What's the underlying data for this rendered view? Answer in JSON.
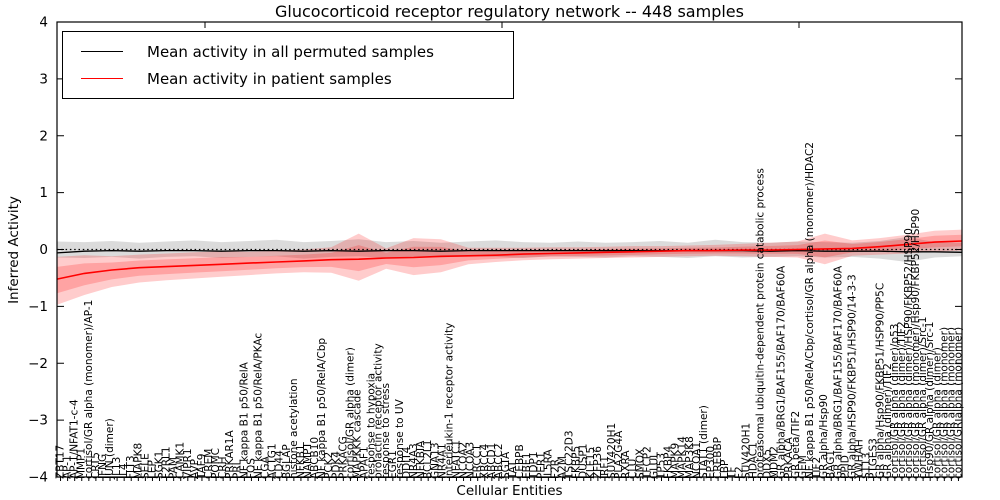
{
  "title": "Glucocorticoid receptor regulatory network -- 448 samples",
  "legend": {
    "items": [
      {
        "label": "Mean activity in all permuted samples",
        "color": "#000000"
      },
      {
        "label": "Mean activity in patient samples",
        "color": "#ff0000"
      }
    ]
  },
  "colors": {
    "permuted_line": "#000000",
    "patient_line": "#ff0000",
    "permuted_band": "rgba(0,0,0,0.14)",
    "patient_band": "rgba(255,0,0,0.20)",
    "zero_line": "#000000",
    "axis": "#000000"
  },
  "chart_data": {
    "type": "line",
    "title": "Glucocorticoid receptor regulatory network -- 448 samples",
    "xlabel": "Cellular Entities",
    "ylabel": "Inferred Activity",
    "ylim": [
      -4,
      4
    ],
    "yticks": [
      4,
      3,
      2,
      1,
      0,
      -1,
      -2,
      -3,
      -4
    ],
    "grid": false,
    "legend_position": "upper left",
    "zero_line": "dotted",
    "series": [
      {
        "name": "Mean activity in all permuted samples",
        "color": "#000000",
        "values": [
          -0.06,
          -0.03,
          -0.02,
          -0.03,
          -0.02,
          -0.02,
          -0.03,
          -0.02,
          -0.02,
          -0.03,
          -0.02,
          -0.03,
          -0.02,
          -0.02,
          -0.03,
          -0.02,
          -0.02,
          -0.02,
          -0.02,
          -0.02,
          -0.02,
          -0.02,
          -0.02,
          -0.02,
          -0.02,
          -0.02,
          -0.03,
          -0.02,
          -0.03,
          -0.03,
          -0.03,
          -0.04,
          -0.04,
          -0.05
        ]
      },
      {
        "name": "Mean activity in patient samples",
        "color": "#ff0000",
        "values": [
          -0.52,
          -0.42,
          -0.36,
          -0.32,
          -0.3,
          -0.28,
          -0.26,
          -0.24,
          -0.22,
          -0.2,
          -0.18,
          -0.17,
          -0.15,
          -0.14,
          -0.12,
          -0.11,
          -0.1,
          -0.08,
          -0.07,
          -0.06,
          -0.05,
          -0.04,
          -0.03,
          -0.02,
          -0.02,
          -0.01,
          -0.01,
          0.0,
          0.01,
          0.02,
          0.05,
          0.09,
          0.13,
          0.15
        ]
      }
    ],
    "bands": [
      {
        "name": "permuted band",
        "color": "rgba(0,0,0,0.14)",
        "hi": [
          0.14,
          0.13,
          0.15,
          0.12,
          0.14,
          0.16,
          0.13,
          0.15,
          0.17,
          0.13,
          0.15,
          0.18,
          0.13,
          0.15,
          0.12,
          0.14,
          0.16,
          0.13,
          0.12,
          0.14,
          0.12,
          0.13,
          0.15,
          0.12,
          0.17,
          0.13,
          0.12,
          0.14,
          0.13,
          0.12,
          0.15,
          0.22,
          0.13,
          0.12
        ],
        "lo": [
          -0.14,
          -0.15,
          -0.13,
          -0.16,
          -0.13,
          -0.12,
          -0.15,
          -0.13,
          -0.12,
          -0.16,
          -0.13,
          -0.12,
          -0.15,
          -0.13,
          -0.14,
          -0.12,
          -0.13,
          -0.15,
          -0.12,
          -0.13,
          -0.14,
          -0.12,
          -0.13,
          -0.15,
          -0.12,
          -0.14,
          -0.13,
          -0.12,
          -0.14,
          -0.13,
          -0.16,
          -0.22,
          -0.14,
          -0.12
        ]
      },
      {
        "name": "patient band",
        "color": "rgba(255,0,0,0.20)",
        "hi": [
          -0.13,
          -0.1,
          -0.12,
          -0.09,
          -0.07,
          -0.05,
          -0.03,
          -0.04,
          -0.02,
          0.0,
          0.04,
          0.28,
          0.02,
          0.2,
          0.18,
          0.03,
          0.03,
          0.03,
          0.04,
          0.04,
          0.05,
          0.06,
          0.06,
          0.07,
          0.08,
          0.1,
          0.12,
          0.14,
          0.28,
          0.16,
          0.2,
          0.26,
          0.33,
          0.35
        ],
        "lo": [
          -0.97,
          -0.8,
          -0.66,
          -0.58,
          -0.54,
          -0.51,
          -0.48,
          -0.45,
          -0.42,
          -0.4,
          -0.41,
          -0.55,
          -0.34,
          -0.45,
          -0.4,
          -0.26,
          -0.22,
          -0.19,
          -0.17,
          -0.16,
          -0.15,
          -0.14,
          -0.13,
          -0.12,
          -0.11,
          -0.12,
          -0.13,
          -0.14,
          -0.26,
          -0.11,
          -0.09,
          -0.07,
          -0.04,
          -0.02
        ]
      }
    ],
    "x_tick_labels": [
      "ZBT17",
      "AP-1",
      "AP-1/NFAT1-c-4",
      "MMP1",
      "cortisol/GR alpha (monomer)/AP-1",
      "CRT5",
      "IFNG",
      "JUN (dimer)",
      "IL13",
      "IL4",
      "FLT3",
      "MAPK8",
      "SELE",
      "LEP",
      "SGK1",
      "F2RL1",
      "PAM",
      "CAMK1",
      "VIPR1",
      "AVP",
      "TAF9",
      "CREM",
      "POMC",
      "CRH",
      "PRKAR1A",
      "PRL",
      "NF kappa B1 p50/RelA",
      "FOS",
      "NF kappa B1 p50/RelA/PKAc",
      "CGA",
      "ACTG1",
      "CD44",
      "BGLAP",
      "histone acetylation",
      "NFKB1",
      "NAMPT",
      "ABCB10",
      "NF kappa B1 p50/RelA/Cbp",
      "PCK2",
      "PDK4",
      "PRKACG",
      "cortisol/GR alpha (dimer)",
      "MAPKKK cascade",
      "APAF1",
      "response to hypoxia",
      "prolactin receptor activity",
      "response to stress",
      "EGR1",
      "response to UV",
      "DDIT4",
      "NR4A3",
      "NFKBIA",
      "BCL2L1",
      "GNA13",
      "NR4A1",
      "interleukin-1 receptor activity",
      "NFATC1",
      "NCOA2",
      "NCOA3",
      "ERCC1",
      "XRCC4",
      "ABCD1",
      "ABCC2",
      "SGTA",
      "TAT",
      "CEBPB",
      "EBF1",
      "TDP1",
      "PER1",
      "IL5RA",
      "F2R",
      "A2M",
      "TSC22D3",
      "FKBP5",
      "DUSP1",
      "KLF15",
      "ZFP36",
      "IRF1",
      "SUV420H1",
      "PLA2G4A",
      "RXRA",
      "CLU",
      "SMOX",
      "TFCP2",
      "GLUL",
      "TP53",
      "FKBP4",
      "MAPK9",
      "MAPK14",
      "MAP3K8",
      "NCOA1",
      "STAT1 (dimer)",
      "EP300",
      "CREBBP",
      "LBP",
      "TF",
      "F2",
      "SUV420H1",
      "HDAC1",
      "proteasomal ubiquitin-dependent protein catabolic process",
      "DDX5",
      "MDM2",
      "GR alpha/BRG1/BAF155/BAF170/BAF60A",
      "PRKACA",
      "GR beta/TIF2",
      "GEM",
      "NF kappa B1 p50/RelA/Cbp/cortisol/GR alpha (monomer)/HDAC2",
      "TIF2",
      "GR alpha/Hsp90",
      "BAG1",
      "GR alpha/BRG1/BAF155/BAF170/BAF60A",
      "PPID",
      "GR alpha/HSP90/FKBP51/HSP90/14-3-3",
      "YWHAH",
      "ST13",
      "PTGES3",
      "GR alpha/Hsp90/FKBP51/HSP90/PP5C",
      "GR alpha (dimer)/TIF2",
      "cortisol/GR alpha (dimer)/p53",
      "cortisol/GR alpha (dimer)/TIF2",
      "cortisol/GR alpha (dimer)/HSP90/FKBP52/HSP90",
      "cortisol/GR alpha (monomer)/Hsp90/FKBP52/HSP90",
      "cortisol/GR alpha (dimer)/Src-1",
      "Hsp90/GR alpha (dimer)/Src-1",
      "cortisol/GR alpha (dimer)",
      "cortisol/GR alpha (monomer)",
      "cortisol/GR alpha (monomer)",
      "cortisol/GR alpha (monomer)"
    ]
  }
}
